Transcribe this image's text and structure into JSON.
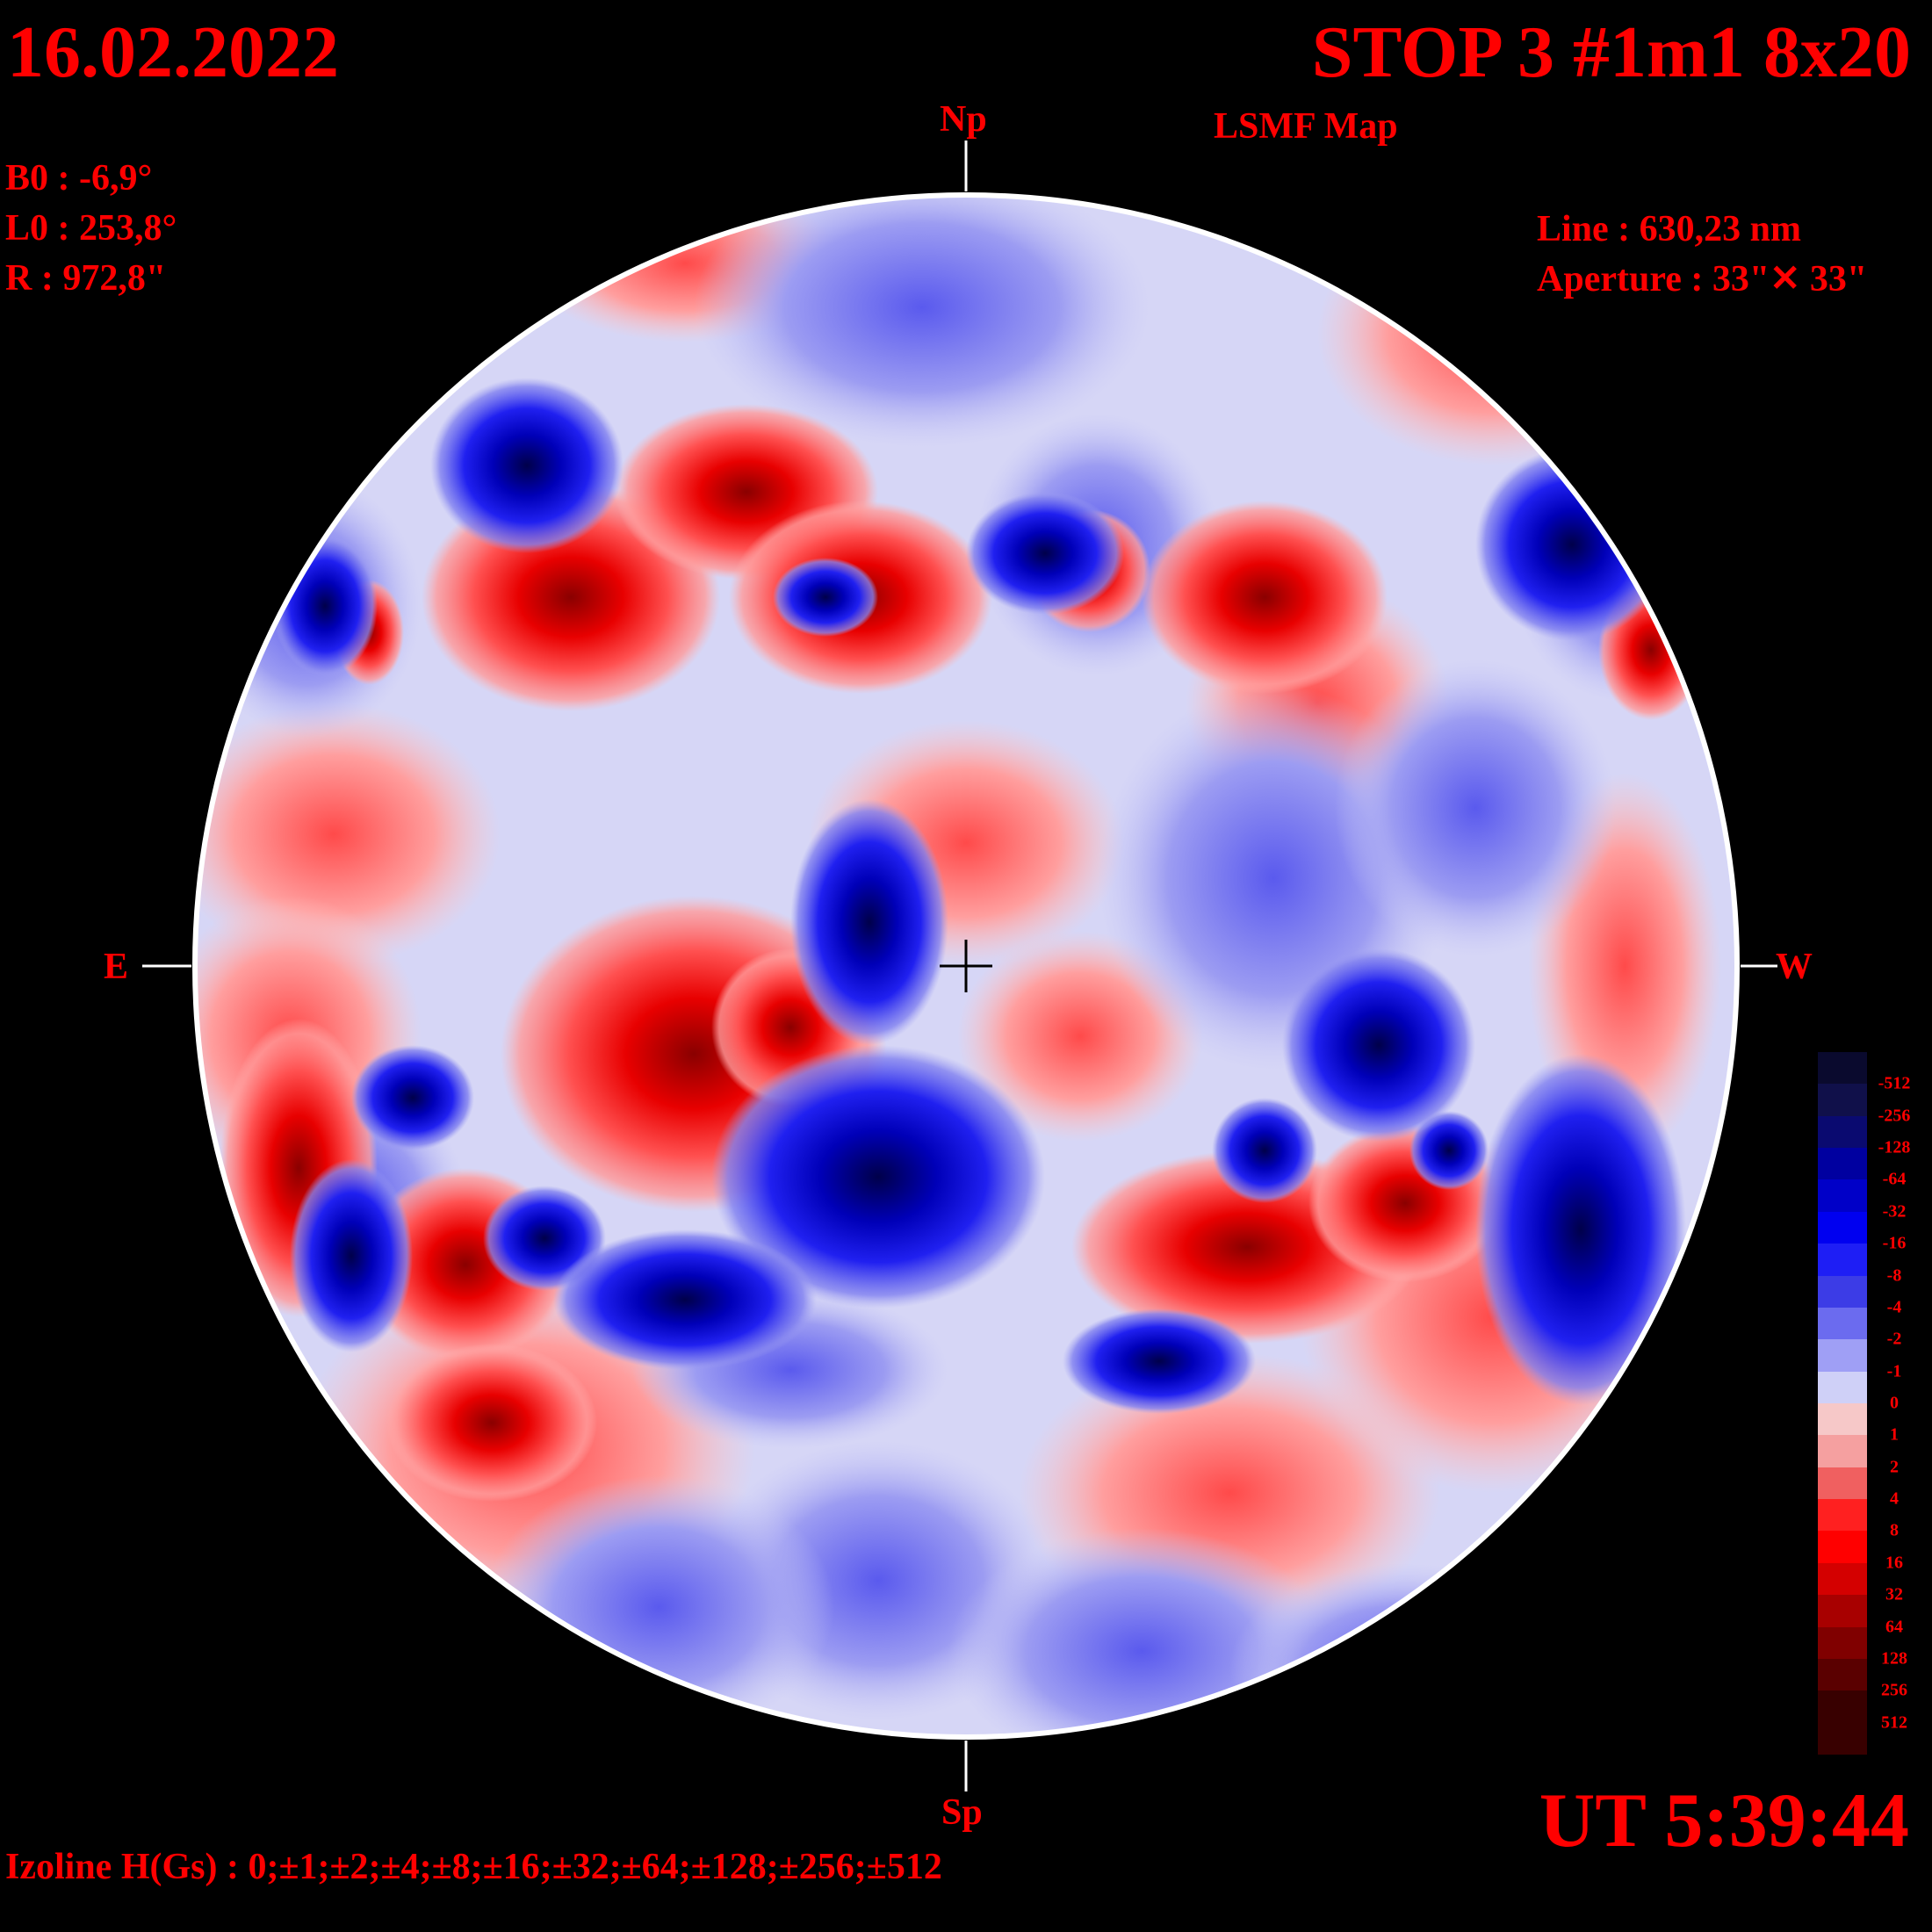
{
  "header": {
    "date": "16.02.2022",
    "title": "STOP 3 #1m1 8x20",
    "subtitle": "LSMF  Map"
  },
  "params": {
    "b0": "B0 : -6,9°",
    "l0": "L0 : 253,8°",
    "r": "R  : 972,8\"",
    "line": "Line :  630,23 nm",
    "aperture": "Aperture : 33\"✕ 33\""
  },
  "directions": {
    "north": "Np",
    "south": "Sp",
    "east": "E",
    "west": "W"
  },
  "footer": {
    "time": "UT 5:39:44",
    "izolines": "Izoline H(Gs) : 0;±1;±2;±4;±8;±16;±32;±64;±128;±256;±512"
  },
  "legend": {
    "labels": [
      "-512",
      "-256",
      "-128",
      "-64",
      "-32",
      "-16",
      "-8",
      "-4",
      "-2",
      "-1",
      "0",
      "1",
      "2",
      "4",
      "8",
      "16",
      "32",
      "64",
      "128",
      "256",
      "512"
    ],
    "colors": [
      "#0a0a2e",
      "#10104a",
      "#0a0a70",
      "#0000a0",
      "#0000c8",
      "#0000f0",
      "#1e1ef5",
      "#3c3ce6",
      "#6b6bef",
      "#9f9ff5",
      "#cfd0f7",
      "#f6c8c8",
      "#f5a0a0",
      "#f06060",
      "#ff2020",
      "#ff0000",
      "#d40000",
      "#a80000",
      "#800000",
      "#5a0000",
      "#380000"
    ]
  },
  "map_colors": {
    "positive_strong": "#7a0000",
    "positive": "#e40000",
    "positive_weak": "#ff9a9a",
    "negative_strong": "#000060",
    "negative": "#0000e6",
    "negative_weak": "#a6a6f2",
    "neutral": "#ffffff"
  }
}
